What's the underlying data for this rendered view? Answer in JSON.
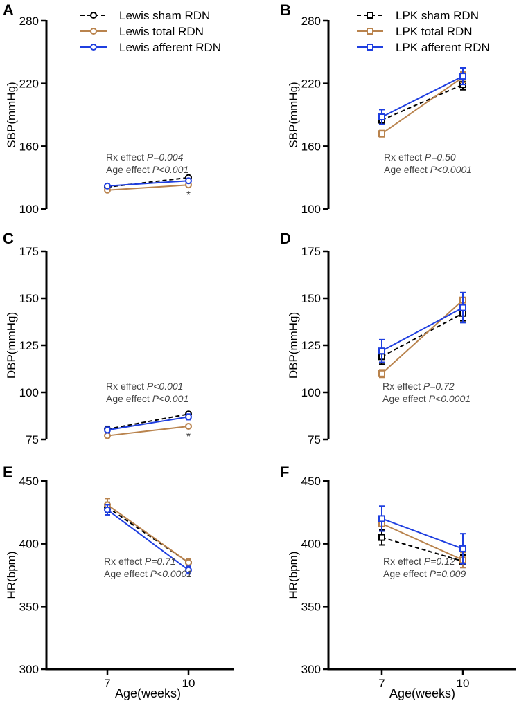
{
  "figure": {
    "x_axis_label": "Age(weeks)",
    "colors": {
      "sham": "#000000",
      "total": "#b9834d",
      "afferent": "#1f3fe0"
    }
  },
  "chart_data": [
    {
      "type": "line",
      "panel_letter": "A",
      "ylabel": "SBP(mmHg)",
      "ylim": [
        100,
        280
      ],
      "yticks": [
        100,
        160,
        220,
        280
      ],
      "categories": [
        "7",
        "10"
      ],
      "marker": "circle",
      "series": [
        {
          "name": "Lewis sham RDN",
          "key": "sham",
          "values": [
            121,
            130
          ],
          "err": [
            1.5,
            1.5
          ]
        },
        {
          "name": "Lewis total RDN",
          "key": "total",
          "values": [
            118,
            123
          ],
          "err": [
            1.5,
            1.5
          ]
        },
        {
          "name": "Lewis afferent RDN",
          "key": "afferent",
          "values": [
            122,
            127
          ],
          "err": [
            1.5,
            1.5
          ]
        }
      ],
      "legend": {
        "shown": true,
        "placement": "top-right"
      },
      "annotations": {
        "line1_prefix": "Rx effect ",
        "line1_p": "P=0.004",
        "line2_prefix": "Age effect ",
        "line2_p": "P<0.001"
      },
      "markers": [
        "*"
      ]
    },
    {
      "type": "line",
      "panel_letter": "B",
      "ylabel": "SBP(mmHg)",
      "ylim": [
        100,
        280
      ],
      "yticks": [
        100,
        160,
        220,
        280
      ],
      "categories": [
        "7",
        "10"
      ],
      "marker": "square",
      "series": [
        {
          "name": "LPK sham RDN",
          "key": "sham",
          "values": [
            185,
            219
          ],
          "err": [
            4,
            5
          ]
        },
        {
          "name": "LPK total RDN",
          "key": "total",
          "values": [
            172,
            226
          ],
          "err": [
            3,
            5
          ]
        },
        {
          "name": "LPK afferent RDN",
          "key": "afferent",
          "values": [
            188,
            227
          ],
          "err": [
            7,
            8
          ]
        }
      ],
      "legend": {
        "shown": true,
        "placement": "top-right"
      },
      "annotations": {
        "line1_prefix": "Rx effect ",
        "line1_p": "P=0.50",
        "line2_prefix": "Age effect ",
        "line2_p": "P<0.0001"
      },
      "markers": []
    },
    {
      "type": "line",
      "panel_letter": "C",
      "ylabel": "DBP(mmHg)",
      "ylim": [
        75,
        175
      ],
      "yticks": [
        75,
        100,
        125,
        150,
        175
      ],
      "categories": [
        "7",
        "10"
      ],
      "marker": "circle",
      "series": [
        {
          "name": "Lewis sham RDN",
          "key": "sham",
          "values": [
            80.5,
            88.5
          ],
          "err": [
            1.5,
            1.2
          ]
        },
        {
          "name": "Lewis total RDN",
          "key": "total",
          "values": [
            77,
            82
          ],
          "err": [
            1,
            1
          ]
        },
        {
          "name": "Lewis afferent RDN",
          "key": "afferent",
          "values": [
            80,
            87
          ],
          "err": [
            1.5,
            1.5
          ]
        }
      ],
      "legend": {
        "shown": false
      },
      "annotations": {
        "line1_prefix": "Rx effect ",
        "line1_p": "P<0.001",
        "line2_prefix": "Age effect ",
        "line2_p": "P<0.001"
      },
      "markers": [
        "*"
      ]
    },
    {
      "type": "line",
      "panel_letter": "D",
      "ylabel": "DBP(mmHg)",
      "ylim": [
        75,
        175
      ],
      "yticks": [
        75,
        100,
        125,
        150,
        175
      ],
      "categories": [
        "7",
        "10"
      ],
      "marker": "square",
      "series": [
        {
          "name": "LPK sham RDN",
          "key": "sham",
          "values": [
            119,
            142
          ],
          "err": [
            4,
            4
          ]
        },
        {
          "name": "LPK total RDN",
          "key": "total",
          "values": [
            110,
            149
          ],
          "err": [
            2,
            4
          ]
        },
        {
          "name": "LPK afferent RDN",
          "key": "afferent",
          "values": [
            122,
            145
          ],
          "err": [
            6,
            8
          ]
        }
      ],
      "legend": {
        "shown": false
      },
      "annotations": {
        "line1_prefix": "Rx effect ",
        "line1_p": "P=0.72",
        "line2_prefix": "Age effect ",
        "line2_p": "P<0.0001"
      },
      "markers": []
    },
    {
      "type": "line",
      "panel_letter": "E",
      "ylabel": "HR(bpm)",
      "ylim": [
        300,
        450
      ],
      "yticks": [
        300,
        350,
        400,
        450
      ],
      "categories": [
        "7",
        "10"
      ],
      "marker": "circle",
      "series": [
        {
          "name": "Lewis sham RDN",
          "key": "sham",
          "values": [
            429,
            385
          ],
          "err": [
            4,
            3
          ]
        },
        {
          "name": "Lewis total RDN",
          "key": "total",
          "values": [
            431,
            385
          ],
          "err": [
            5,
            3
          ]
        },
        {
          "name": "Lewis afferent RDN",
          "key": "afferent",
          "values": [
            427,
            379
          ],
          "err": [
            4,
            3
          ]
        }
      ],
      "legend": {
        "shown": false
      },
      "annotations": {
        "line1_prefix": "Rx effect ",
        "line1_p": "P=0.71",
        "line2_prefix": "Age effect ",
        "line2_p": "P<0.0001"
      },
      "markers": []
    },
    {
      "type": "line",
      "panel_letter": "F",
      "ylabel": "HR(bpm)",
      "ylim": [
        300,
        450
      ],
      "yticks": [
        300,
        350,
        400,
        450
      ],
      "categories": [
        "7",
        "10"
      ],
      "marker": "square",
      "series": [
        {
          "name": "LPK sham RDN",
          "key": "sham",
          "values": [
            405,
            386
          ],
          "err": [
            6,
            5
          ]
        },
        {
          "name": "LPK total RDN",
          "key": "total",
          "values": [
            416,
            387
          ],
          "err": [
            6,
            6
          ]
        },
        {
          "name": "LPK afferent RDN",
          "key": "afferent",
          "values": [
            420,
            396
          ],
          "err": [
            10,
            12
          ]
        }
      ],
      "legend": {
        "shown": false
      },
      "annotations": {
        "line1_prefix": "Rx effect ",
        "line1_p": "P=0.12",
        "line2_prefix": "Age effect ",
        "line2_p": "P=0.009"
      },
      "markers": []
    }
  ]
}
